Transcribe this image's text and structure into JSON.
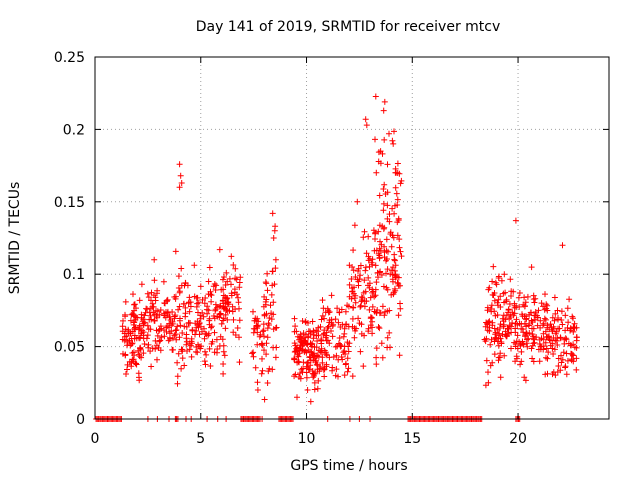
{
  "chart_data": {
    "type": "scatter",
    "title": "Day 141 of 2019, SRMTID for receiver mtcv",
    "xlabel": "GPS time / hours",
    "ylabel": "SRMTID / TECUs",
    "xlim": [
      0,
      24.3
    ],
    "ylim": [
      0,
      0.25
    ],
    "xticks": [
      0,
      5,
      10,
      15,
      20
    ],
    "yticks": [
      0,
      0.05,
      0.1,
      0.15,
      0.2,
      0.25
    ],
    "xtick_labels": [
      "0",
      "5",
      "10",
      "15",
      "20"
    ],
    "ytick_labels": [
      "0",
      "0.05",
      "0.1",
      "0.15",
      "0.2",
      "0.25"
    ],
    "grid": true,
    "marker": "+",
    "series_color": "#ff0000",
    "series": [
      {
        "name": "SRMTID",
        "clusters": [
          {
            "x": [
              1.3,
              2.2
            ],
            "y_center": 0.055,
            "y_spread": 0.012,
            "n": 90
          },
          {
            "x": [
              2.2,
              3.8
            ],
            "y_center": 0.065,
            "y_spread": 0.014,
            "n": 110
          },
          {
            "x": [
              3.8,
              4.3
            ],
            "y_center": 0.075,
            "y_spread": 0.02,
            "n": 40
          },
          {
            "x": [
              4.3,
              5.6
            ],
            "y_center": 0.068,
            "y_spread": 0.015,
            "n": 90
          },
          {
            "x": [
              5.6,
              6.9
            ],
            "y_center": 0.072,
            "y_spread": 0.018,
            "n": 90
          },
          {
            "x": [
              7.4,
              8.0
            ],
            "y_center": 0.055,
            "y_spread": 0.015,
            "n": 35
          },
          {
            "x": [
              8.0,
              8.6
            ],
            "y_center": 0.07,
            "y_spread": 0.025,
            "n": 40
          },
          {
            "x": [
              9.4,
              10.6
            ],
            "y_center": 0.047,
            "y_spread": 0.011,
            "n": 130
          },
          {
            "x": [
              10.6,
              12.0
            ],
            "y_center": 0.055,
            "y_spread": 0.014,
            "n": 100
          },
          {
            "x": [
              12.0,
              13.2
            ],
            "y_center": 0.085,
            "y_spread": 0.02,
            "n": 90
          },
          {
            "x": [
              13.2,
              14.5
            ],
            "y_center": 0.12,
            "y_spread": 0.035,
            "n": 140
          },
          {
            "x": [
              18.4,
              19.6
            ],
            "y_center": 0.068,
            "y_spread": 0.018,
            "n": 100
          },
          {
            "x": [
              19.6,
              21.0
            ],
            "y_center": 0.062,
            "y_spread": 0.014,
            "n": 110
          },
          {
            "x": [
              21.0,
              22.8
            ],
            "y_center": 0.056,
            "y_spread": 0.013,
            "n": 130
          }
        ],
        "outliers": [
          {
            "x": 4.0,
            "y": 0.176
          },
          {
            "x": 4.05,
            "y": 0.168
          },
          {
            "x": 4.0,
            "y": 0.16
          },
          {
            "x": 4.1,
            "y": 0.163
          },
          {
            "x": 8.4,
            "y": 0.142
          },
          {
            "x": 8.5,
            "y": 0.13
          },
          {
            "x": 8.45,
            "y": 0.125
          },
          {
            "x": 8.55,
            "y": 0.11
          },
          {
            "x": 13.7,
            "y": 0.219
          },
          {
            "x": 13.65,
            "y": 0.213
          },
          {
            "x": 12.8,
            "y": 0.207
          },
          {
            "x": 12.85,
            "y": 0.203
          },
          {
            "x": 13.5,
            "y": 0.185
          },
          {
            "x": 13.9,
            "y": 0.197
          },
          {
            "x": 14.1,
            "y": 0.19
          },
          {
            "x": 14.2,
            "y": 0.17
          },
          {
            "x": 19.9,
            "y": 0.137
          },
          {
            "x": 22.1,
            "y": 0.12
          },
          {
            "x": 2.8,
            "y": 0.11
          },
          {
            "x": 5.9,
            "y": 0.117
          },
          {
            "x": 9.55,
            "y": 0.015
          },
          {
            "x": 10.2,
            "y": 0.012
          },
          {
            "x": 10.05,
            "y": 0.02
          },
          {
            "x": 7.7,
            "y": 0.02
          },
          {
            "x": 12.4,
            "y": 0.15
          },
          {
            "x": 13.3,
            "y": 0.17
          },
          {
            "x": 14.4,
            "y": 0.044
          },
          {
            "x": 18.6,
            "y": 0.025
          }
        ],
        "zero_intervals": [
          [
            0.05,
            1.3
          ],
          [
            2.5,
            2.55
          ],
          [
            2.95,
            3.0
          ],
          [
            3.5,
            3.55
          ],
          [
            3.8,
            3.95
          ],
          [
            4.3,
            4.35
          ],
          [
            4.55,
            4.6
          ],
          [
            5.3,
            5.35
          ],
          [
            5.8,
            5.85
          ],
          [
            6.2,
            6.25
          ],
          [
            6.9,
            7.8
          ],
          [
            7.9,
            7.95
          ],
          [
            8.7,
            9.4
          ],
          [
            11.0,
            11.05
          ],
          [
            12.05,
            12.1
          ],
          [
            12.5,
            12.55
          ],
          [
            13.0,
            13.05
          ],
          [
            14.8,
            18.3
          ],
          [
            19.9,
            20.1
          ]
        ]
      }
    ]
  }
}
